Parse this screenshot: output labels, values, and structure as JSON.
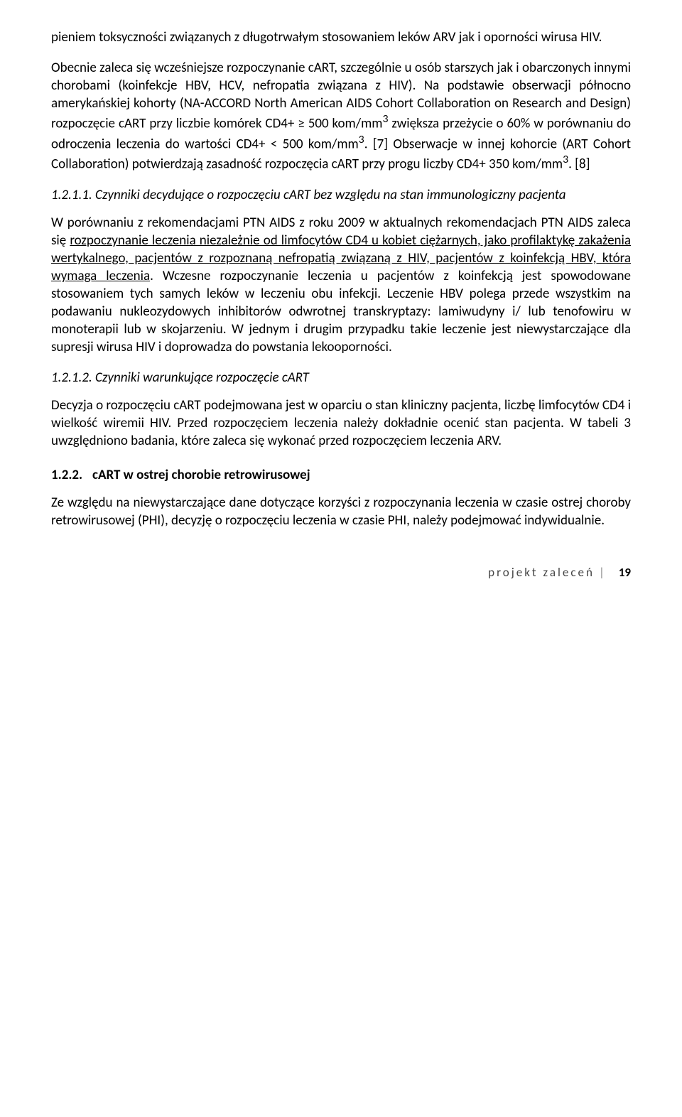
{
  "para1": "pieniem toksyczności związanych z długotrwałym stosowaniem leków ARV jak i oporności wirusa HIV.",
  "para2_a": "Obecnie zaleca się wcześniejsze rozpoczynanie cART, szczególnie u osób starszych jak i obarczonych innymi chorobami (koinfekcje HBV, HCV, nefropatia związana z HIV). Na podstawie obserwacji północno amerykańskiej kohorty (NA-ACCORD North American AIDS Cohort Collaboration on Research and Design) rozpoczęcie cART przy liczbie komórek CD4+ ≥ 500 kom/mm",
  "para2_b": " zwiększa przeżycie o 60% w porównaniu do odroczenia leczenia do wartości CD4+ < 500 kom/mm",
  "para2_c": ". [7] Obserwacje w innej kohorcie (ART Cohort Collaboration) potwierdzają zasadność rozpoczęcia cART przy progu liczby CD4+ 350 kom/mm",
  "para2_d": ". [8]",
  "sup3": "3",
  "h1_num": "1.2.1.1.",
  "h1_text": " Czynniki decydujące o rozpoczęciu cART bez względu na stan immunologiczny pacjenta",
  "para3_a": "W porównaniu z rekomendacjami PTN AIDS z roku 2009 w aktualnych rekomendacjach PTN AIDS zaleca się ",
  "para3_u": "rozpoczynanie leczenia niezależnie od limfocytów CD4 u kobiet ciężarnych, jako profilaktykę zakażenia wertykalnego, pacjentów z rozpoznaną nefropatią związaną z HIV, pacjentów z koinfekcją HBV, która wymaga leczenia",
  "para3_b": ". Wczesne rozpoczynanie leczenia u pacjentów z koinfekcją jest spowodowane stosowaniem tych samych leków w leczeniu obu infekcji. Leczenie HBV polega przede wszystkim na podawaniu nukleozydowych inhibitorów odwrotnej transkryptazy: lamiwudyny i/ lub tenofowiru w monoterapii lub w skojarzeniu. W jednym i drugim przypadku takie leczenie jest niewystarczające dla supresji wirusa HIV i doprowadza do powstania lekooporności.",
  "h2_num": "1.2.1.2.",
  "h2_text": " Czynniki warunkujące rozpoczęcie cART",
  "para4": "Decyzja o rozpoczęciu cART podejmowana jest w oparciu o stan kliniczny pacjenta, liczbę limfocytów CD4 i wielkość wiremii HIV. Przed rozpoczęciem leczenia należy dokładnie ocenić stan pacjenta. W tabeli 3 uwzględniono badania, które zaleca się wykonać przed rozpoczęciem leczenia ARV.",
  "h3_num": "1.2.2.",
  "h3_text": "cART w ostrej chorobie retrowirusowej",
  "para5": "Ze względu na niewystarczające dane dotyczące korzyści z rozpoczynania leczenia w czasie ostrej choroby retrowirusowej (PHI), decyzję o rozpoczęciu leczenia w czasie PHI, należy podejmować indywidualnie.",
  "footer_label": "projekt zaleceń",
  "footer_page": "19"
}
